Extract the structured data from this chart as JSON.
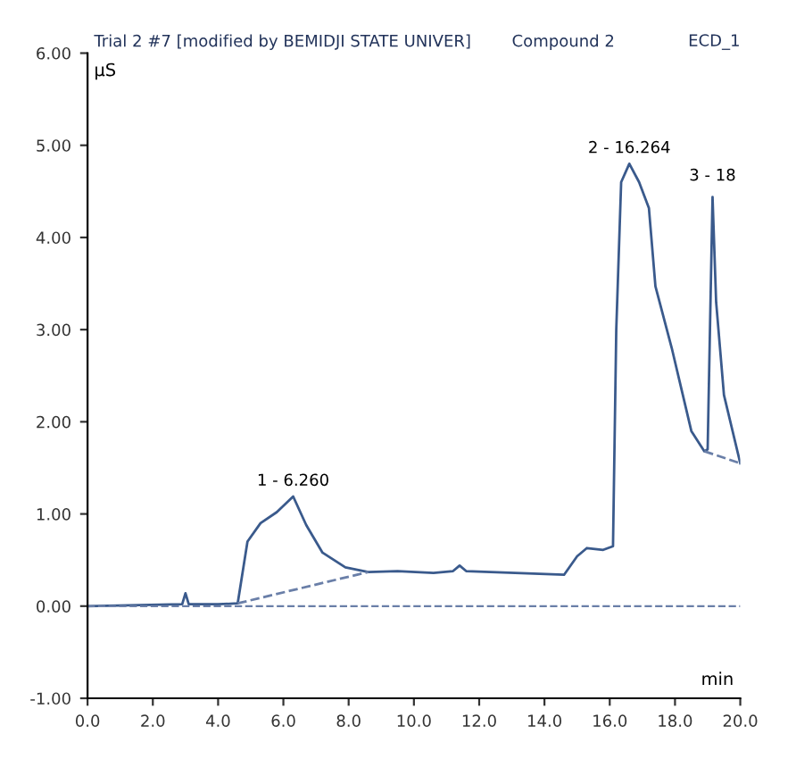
{
  "chart_data": {
    "type": "line",
    "title": "Trial 2 #7 [modified by BEMIDJI STATE UNIVER]",
    "subtitle": "Compound 2",
    "xlabel": "min",
    "ylabel": "µS",
    "annotations": [
      "ECD_1",
      {
        "text": "1 - 6.260",
        "x": 6.3,
        "y": 1.19
      },
      {
        "text": "2 - 16.264",
        "x": 16.6,
        "y": 4.8
      },
      {
        "text": "3 - 18",
        "x": 19.15,
        "y": 4.5
      }
    ],
    "series": [
      {
        "color": "#3a5a8c",
        "line_style": "solid",
        "x": [
          0,
          2.9,
          3.0,
          3.1,
          4.0,
          4.6,
          4.9,
          5.3,
          5.8,
          6.3,
          6.7,
          7.2,
          7.9,
          8.6,
          9.5,
          10.6,
          11.2,
          11.4,
          11.6,
          13.1,
          14.6,
          15.0,
          15.3,
          15.8,
          16.1,
          16.2,
          16.35,
          16.6,
          16.9,
          17.2,
          17.4,
          17.9,
          18.5,
          18.9,
          19.0,
          19.15,
          19.26,
          19.5,
          20.0
        ],
        "values": [
          0.0,
          0.02,
          0.14,
          0.02,
          0.02,
          0.03,
          0.7,
          0.9,
          1.02,
          1.19,
          0.88,
          0.58,
          0.42,
          0.37,
          0.38,
          0.36,
          0.38,
          0.44,
          0.38,
          0.36,
          0.34,
          0.54,
          0.63,
          0.61,
          0.65,
          3.0,
          4.6,
          4.8,
          4.6,
          4.32,
          3.47,
          2.8,
          1.9,
          1.68,
          1.7,
          4.44,
          3.3,
          2.29,
          1.55
        ]
      },
      {
        "color": "#6a7fa8",
        "line_style": "dashed",
        "x": [
          4.6,
          8.6
        ],
        "values": [
          0.03,
          0.37
        ]
      },
      {
        "color": "#6a7fa8",
        "line_style": "dashed",
        "x": [
          18.9,
          20.0
        ],
        "values": [
          1.68,
          1.55
        ]
      }
    ],
    "xlim": [
      0,
      20
    ],
    "ylim": [
      -1,
      6
    ],
    "xticks": [
      {
        "value": 0,
        "label": "0.0"
      },
      {
        "value": 2,
        "label": "2.0"
      },
      {
        "value": 4,
        "label": "4.0"
      },
      {
        "value": 6,
        "label": "6.0"
      },
      {
        "value": 8,
        "label": "8.0"
      },
      {
        "value": 10,
        "label": "10.0"
      },
      {
        "value": 12,
        "label": "12.0"
      },
      {
        "value": 14,
        "label": "14.0"
      },
      {
        "value": 16,
        "label": "16.0"
      },
      {
        "value": 18,
        "label": "18.0"
      },
      {
        "value": 20,
        "label": "20.0"
      }
    ],
    "yticks": [
      {
        "value": -1,
        "label": "-1.00"
      },
      {
        "value": 0,
        "label": "0.00"
      },
      {
        "value": 1,
        "label": "1.00"
      },
      {
        "value": 2,
        "label": "2.00"
      },
      {
        "value": 3,
        "label": "3.00"
      },
      {
        "value": 4,
        "label": "4.00"
      },
      {
        "value": 5,
        "label": "5.00"
      },
      {
        "value": 6,
        "label": "6.00"
      }
    ],
    "ref_lines": [
      {
        "axis": "y",
        "value": 0,
        "color": "#6a7fa8",
        "line_style": "dashed"
      }
    ],
    "grid": false,
    "legend": false
  }
}
